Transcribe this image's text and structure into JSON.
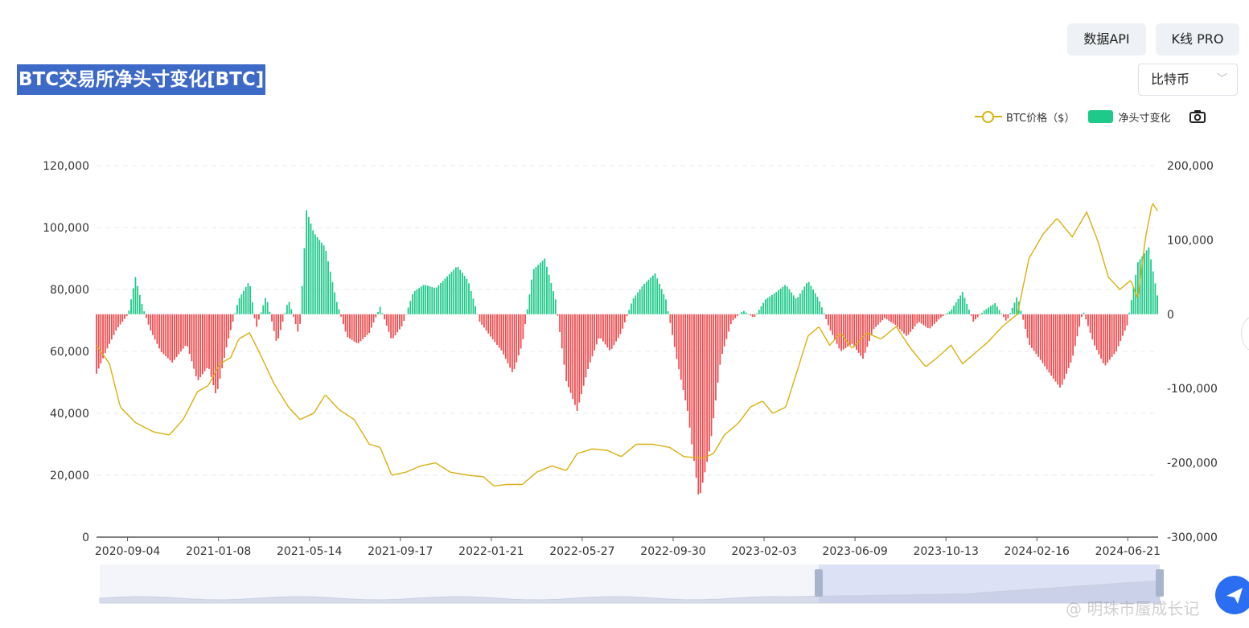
{
  "toolbar": {
    "api_label": "数据API",
    "kline_label": "K线 PRO"
  },
  "chart_title": "BTC交易所净头寸变化[BTC]",
  "coin_select": {
    "value": "比特币"
  },
  "legend": {
    "price_label": "BTC价格（$）",
    "netpos_label": "净头寸变化"
  },
  "icons": {
    "camera": "camera-icon",
    "share": "send-icon",
    "dropdown": "chevron-down-icon"
  },
  "watermark_text": "@ 明珠市蜃成长记",
  "colors": {
    "price": "#d9b00e",
    "positive": "#1fc98a",
    "negative": "#ec4e51",
    "title_bg": "#3d69c7"
  },
  "chart_data": {
    "type": "bar",
    "title": "BTC交易所净头寸变化[BTC]",
    "left_axis": {
      "ticks": [
        "120,000",
        "100,000",
        "80,000",
        "60,000",
        "40,000",
        "20,000",
        "0"
      ],
      "ylim": [
        0,
        120000
      ]
    },
    "right_axis": {
      "ticks": [
        "200,000",
        "100,000",
        "0",
        "-100,000",
        "-200,000",
        "-300,000"
      ],
      "ylim": [
        -300000,
        200000
      ]
    },
    "x_ticks": [
      "2020-09-04",
      "2021-01-08",
      "2021-05-14",
      "2021-09-17",
      "2022-01-21",
      "2022-05-27",
      "2022-09-30",
      "2023-02-03",
      "2023-06-09",
      "2023-10-13",
      "2024-02-16",
      "2024-06-21"
    ],
    "x_range": [
      "2020-07-23",
      "2024-08-02"
    ],
    "series": [
      {
        "name": "BTC价格（$）",
        "type": "line",
        "axis": "left",
        "points": [
          [
            "2020-07-23",
            62000
          ],
          [
            "2020-08-10",
            56000
          ],
          [
            "2020-08-25",
            42000
          ],
          [
            "2020-09-15",
            37000
          ],
          [
            "2020-10-10",
            34000
          ],
          [
            "2020-11-01",
            33000
          ],
          [
            "2020-11-20",
            38000
          ],
          [
            "2020-12-10",
            47000
          ],
          [
            "2020-12-25",
            49000
          ],
          [
            "2021-01-10",
            56000
          ],
          [
            "2021-01-25",
            58000
          ],
          [
            "2021-02-05",
            64000
          ],
          [
            "2021-02-20",
            66000
          ],
          [
            "2021-03-05",
            60000
          ],
          [
            "2021-03-25",
            50000
          ],
          [
            "2021-04-15",
            42000
          ],
          [
            "2021-05-01",
            38000
          ],
          [
            "2021-05-20",
            40000
          ],
          [
            "2021-06-05",
            46000
          ],
          [
            "2021-06-25",
            41000
          ],
          [
            "2021-07-15",
            38000
          ],
          [
            "2021-08-05",
            30000
          ],
          [
            "2021-08-20",
            29000
          ],
          [
            "2021-09-05",
            20000
          ],
          [
            "2021-09-25",
            21000
          ],
          [
            "2021-10-15",
            23000
          ],
          [
            "2021-11-05",
            24000
          ],
          [
            "2021-11-25",
            21000
          ],
          [
            "2021-12-20",
            20000
          ],
          [
            "2022-01-10",
            19500
          ],
          [
            "2022-01-25",
            16500
          ],
          [
            "2022-02-10",
            17000
          ],
          [
            "2022-03-05",
            17000
          ],
          [
            "2022-03-25",
            21000
          ],
          [
            "2022-04-15",
            23000
          ],
          [
            "2022-05-05",
            21500
          ],
          [
            "2022-05-20",
            27000
          ],
          [
            "2022-06-10",
            28500
          ],
          [
            "2022-07-01",
            28000
          ],
          [
            "2022-07-20",
            26000
          ],
          [
            "2022-08-10",
            30000
          ],
          [
            "2022-09-01",
            30000
          ],
          [
            "2022-09-25",
            29000
          ],
          [
            "2022-10-15",
            26000
          ],
          [
            "2022-11-10",
            25500
          ],
          [
            "2022-11-25",
            27000
          ],
          [
            "2022-12-10",
            33000
          ],
          [
            "2022-12-30",
            37000
          ],
          [
            "2023-01-15",
            42000
          ],
          [
            "2023-02-01",
            44000
          ],
          [
            "2023-02-15",
            40000
          ],
          [
            "2023-03-05",
            42000
          ],
          [
            "2023-03-20",
            53000
          ],
          [
            "2023-04-05",
            65000
          ],
          [
            "2023-04-20",
            68000
          ],
          [
            "2023-05-05",
            62000
          ],
          [
            "2023-05-20",
            66000
          ],
          [
            "2023-06-05",
            61000
          ],
          [
            "2023-06-25",
            66000
          ],
          [
            "2023-07-15",
            64000
          ],
          [
            "2023-08-05",
            68000
          ],
          [
            "2023-08-25",
            61000
          ],
          [
            "2023-09-15",
            55000
          ],
          [
            "2023-10-01",
            58000
          ],
          [
            "2023-10-20",
            62000
          ],
          [
            "2023-11-05",
            56000
          ],
          [
            "2023-11-20",
            59000
          ],
          [
            "2023-12-10",
            63000
          ],
          [
            "2023-12-30",
            68000
          ],
          [
            "2024-01-20",
            72000
          ],
          [
            "2024-02-05",
            90000
          ],
          [
            "2024-02-25",
            98000
          ],
          [
            "2024-03-15",
            103000
          ],
          [
            "2024-04-05",
            97000
          ],
          [
            "2024-04-25",
            105000
          ],
          [
            "2024-05-10",
            96000
          ],
          [
            "2024-05-25",
            84000
          ],
          [
            "2024-06-10",
            80000
          ],
          [
            "2024-06-25",
            83000
          ],
          [
            "2024-07-05",
            77000
          ],
          [
            "2024-07-15",
            96000
          ],
          [
            "2024-07-25",
            108000
          ],
          [
            "2024-08-02",
            105000
          ]
        ]
      },
      {
        "name": "净头寸变化",
        "type": "bar",
        "axis": "right",
        "points": [
          [
            "2020-07-23",
            -80000
          ],
          [
            "2020-08-05",
            -50000
          ],
          [
            "2020-08-20",
            -20000
          ],
          [
            "2020-09-05",
            0
          ],
          [
            "2020-09-15",
            50000
          ],
          [
            "2020-09-25",
            10000
          ],
          [
            "2020-10-05",
            -20000
          ],
          [
            "2020-10-20",
            -50000
          ],
          [
            "2020-11-05",
            -65000
          ],
          [
            "2020-11-25",
            -40000
          ],
          [
            "2020-12-10",
            -90000
          ],
          [
            "2020-12-25",
            -70000
          ],
          [
            "2021-01-05",
            -110000
          ],
          [
            "2021-01-20",
            -40000
          ],
          [
            "2021-02-05",
            20000
          ],
          [
            "2021-02-20",
            45000
          ],
          [
            "2021-03-01",
            -20000
          ],
          [
            "2021-03-15",
            25000
          ],
          [
            "2021-03-30",
            -40000
          ],
          [
            "2021-04-15",
            20000
          ],
          [
            "2021-04-30",
            -30000
          ],
          [
            "2021-05-10",
            140000
          ],
          [
            "2021-05-20",
            110000
          ],
          [
            "2021-06-05",
            90000
          ],
          [
            "2021-06-20",
            20000
          ],
          [
            "2021-07-05",
            -30000
          ],
          [
            "2021-07-20",
            -40000
          ],
          [
            "2021-08-05",
            -25000
          ],
          [
            "2021-08-20",
            10000
          ],
          [
            "2021-09-05",
            -35000
          ],
          [
            "2021-09-20",
            -15000
          ],
          [
            "2021-10-05",
            30000
          ],
          [
            "2021-10-20",
            40000
          ],
          [
            "2021-11-05",
            35000
          ],
          [
            "2021-11-20",
            50000
          ],
          [
            "2021-12-05",
            65000
          ],
          [
            "2021-12-20",
            45000
          ],
          [
            "2022-01-05",
            -10000
          ],
          [
            "2022-01-20",
            -30000
          ],
          [
            "2022-02-05",
            -50000
          ],
          [
            "2022-02-20",
            -80000
          ],
          [
            "2022-03-05",
            -40000
          ],
          [
            "2022-03-20",
            60000
          ],
          [
            "2022-04-05",
            75000
          ],
          [
            "2022-04-20",
            20000
          ],
          [
            "2022-05-05",
            -90000
          ],
          [
            "2022-05-20",
            -130000
          ],
          [
            "2022-06-05",
            -70000
          ],
          [
            "2022-06-20",
            -30000
          ],
          [
            "2022-07-05",
            -50000
          ],
          [
            "2022-07-20",
            -25000
          ],
          [
            "2022-08-05",
            20000
          ],
          [
            "2022-08-20",
            40000
          ],
          [
            "2022-09-05",
            55000
          ],
          [
            "2022-09-20",
            20000
          ],
          [
            "2022-10-05",
            -60000
          ],
          [
            "2022-10-20",
            -130000
          ],
          [
            "2022-11-05",
            -250000
          ],
          [
            "2022-11-20",
            -180000
          ],
          [
            "2022-12-05",
            -60000
          ],
          [
            "2022-12-20",
            -10000
          ],
          [
            "2023-01-05",
            5000
          ],
          [
            "2023-01-20",
            -5000
          ],
          [
            "2023-02-05",
            20000
          ],
          [
            "2023-02-20",
            30000
          ],
          [
            "2023-03-05",
            40000
          ],
          [
            "2023-03-20",
            20000
          ],
          [
            "2023-04-05",
            45000
          ],
          [
            "2023-04-20",
            20000
          ],
          [
            "2023-05-05",
            -20000
          ],
          [
            "2023-05-20",
            -50000
          ],
          [
            "2023-06-05",
            -40000
          ],
          [
            "2023-06-20",
            -60000
          ],
          [
            "2023-07-05",
            -20000
          ],
          [
            "2023-07-20",
            -5000
          ],
          [
            "2023-08-05",
            -15000
          ],
          [
            "2023-08-20",
            -30000
          ],
          [
            "2023-09-05",
            -10000
          ],
          [
            "2023-09-20",
            -20000
          ],
          [
            "2023-10-05",
            -5000
          ],
          [
            "2023-10-20",
            5000
          ],
          [
            "2023-11-05",
            30000
          ],
          [
            "2023-11-20",
            -10000
          ],
          [
            "2023-12-05",
            5000
          ],
          [
            "2023-12-20",
            15000
          ],
          [
            "2024-01-05",
            -10000
          ],
          [
            "2024-01-20",
            25000
          ],
          [
            "2024-02-05",
            -40000
          ],
          [
            "2024-02-20",
            -60000
          ],
          [
            "2024-03-05",
            -80000
          ],
          [
            "2024-03-20",
            -100000
          ],
          [
            "2024-04-05",
            -60000
          ],
          [
            "2024-04-20",
            5000
          ],
          [
            "2024-05-05",
            -40000
          ],
          [
            "2024-05-20",
            -70000
          ],
          [
            "2024-06-05",
            -50000
          ],
          [
            "2024-06-20",
            -15000
          ],
          [
            "2024-07-05",
            70000
          ],
          [
            "2024-07-20",
            90000
          ],
          [
            "2024-08-02",
            20000
          ]
        ]
      }
    ],
    "grid": true,
    "legend_position": "top-right"
  }
}
